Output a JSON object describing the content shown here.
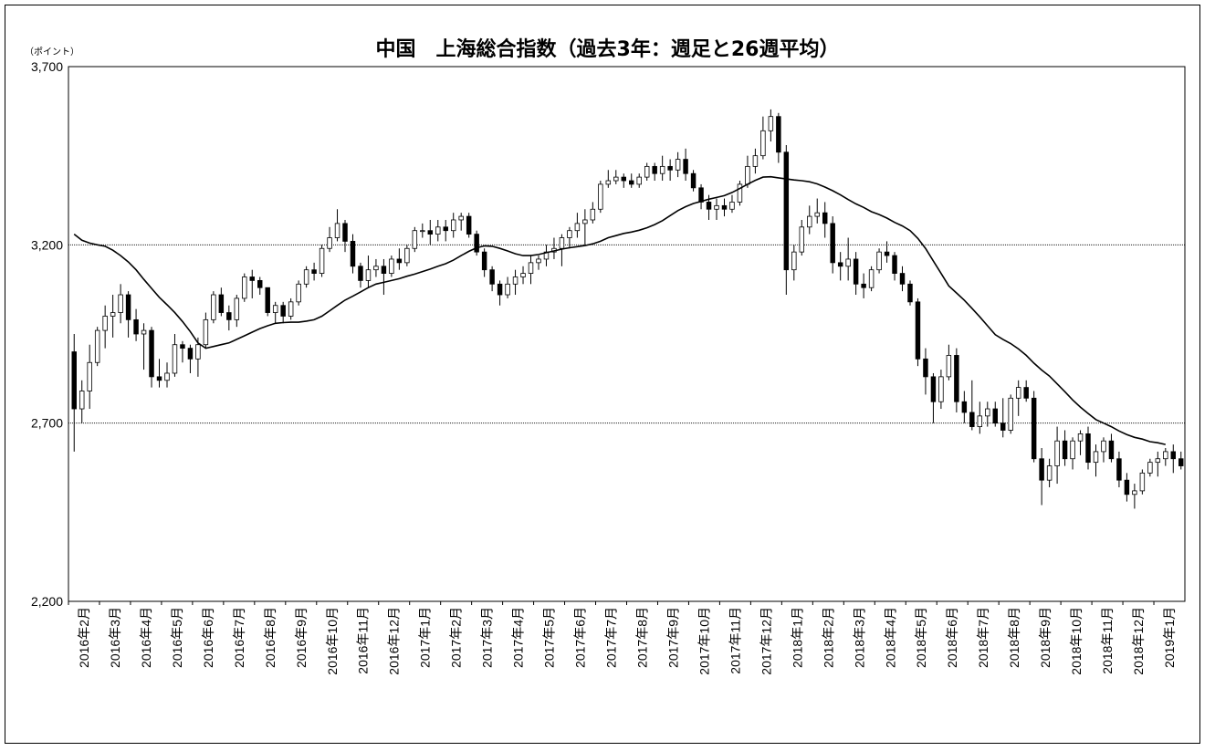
{
  "chart_data": {
    "type": "candlestick",
    "title": "中国　上海総合指数（過去3年：週足と26週平均）",
    "ylabel": "（ポイント）",
    "ylim": [
      2200,
      3700
    ],
    "yticks": [
      "3,700",
      "3,200",
      "2,700",
      "2,200"
    ],
    "ytick_values": [
      3700,
      3200,
      2700,
      2200
    ],
    "reference_lines": [
      3200,
      2700
    ],
    "x_month_labels": [
      "2016年2月",
      "2016年3月",
      "2016年4月",
      "2016年5月",
      "2016年6月",
      "2016年7月",
      "2016年8月",
      "2016年9月",
      "2016年10月",
      "2016年11月",
      "2016年12月",
      "2017年1月",
      "2017年2月",
      "2017年3月",
      "2017年4月",
      "2017年5月",
      "2017年6月",
      "2017年7月",
      "2017年8月",
      "2017年9月",
      "2017年10月",
      "2017年11月",
      "2017年12月",
      "2018年1月",
      "2018年2月",
      "2018年3月",
      "2018年4月",
      "2018年5月",
      "2018年6月",
      "2018年7月",
      "2018年8月",
      "2018年9月",
      "2018年10月",
      "2018年11月",
      "2018年12月",
      "2019年1月"
    ],
    "series": [
      {
        "type": "candlestick",
        "ohlc": [
          [
            2900,
            2950,
            2620,
            2740
          ],
          [
            2740,
            2820,
            2700,
            2790
          ],
          [
            2790,
            2920,
            2740,
            2870
          ],
          [
            2870,
            2970,
            2860,
            2960
          ],
          [
            2960,
            3030,
            2910,
            3000
          ],
          [
            3000,
            3060,
            2940,
            3010
          ],
          [
            3010,
            3090,
            2980,
            3060
          ],
          [
            3060,
            3070,
            2940,
            2990
          ],
          [
            2990,
            3020,
            2930,
            2950
          ],
          [
            2950,
            2980,
            2850,
            2960
          ],
          [
            2960,
            2970,
            2800,
            2830
          ],
          [
            2830,
            2880,
            2800,
            2820
          ],
          [
            2820,
            2870,
            2800,
            2840
          ],
          [
            2840,
            2950,
            2830,
            2920
          ],
          [
            2920,
            2930,
            2870,
            2910
          ],
          [
            2910,
            2920,
            2840,
            2880
          ],
          [
            2880,
            2940,
            2830,
            2920
          ],
          [
            2920,
            3010,
            2910,
            2990
          ],
          [
            2990,
            3070,
            2980,
            3060
          ],
          [
            3060,
            3080,
            3000,
            3010
          ],
          [
            3010,
            3030,
            2960,
            2990
          ],
          [
            2990,
            3060,
            2970,
            3050
          ],
          [
            3050,
            3120,
            3040,
            3110
          ],
          [
            3110,
            3130,
            3050,
            3100
          ],
          [
            3100,
            3110,
            3060,
            3080
          ],
          [
            3080,
            3080,
            3000,
            3010
          ],
          [
            3010,
            3040,
            2980,
            3030
          ],
          [
            3030,
            3040,
            2980,
            3000
          ],
          [
            3000,
            3050,
            2990,
            3040
          ],
          [
            3040,
            3100,
            3030,
            3090
          ],
          [
            3090,
            3140,
            3080,
            3130
          ],
          [
            3130,
            3150,
            3100,
            3120
          ],
          [
            3120,
            3200,
            3110,
            3190
          ],
          [
            3190,
            3250,
            3180,
            3220
          ],
          [
            3220,
            3300,
            3210,
            3260
          ],
          [
            3260,
            3270,
            3180,
            3210
          ],
          [
            3210,
            3230,
            3120,
            3140
          ],
          [
            3140,
            3150,
            3080,
            3100
          ],
          [
            3100,
            3170,
            3080,
            3130
          ],
          [
            3130,
            3160,
            3110,
            3140
          ],
          [
            3140,
            3160,
            3060,
            3120
          ],
          [
            3120,
            3170,
            3110,
            3160
          ],
          [
            3160,
            3190,
            3130,
            3150
          ],
          [
            3150,
            3200,
            3140,
            3190
          ],
          [
            3190,
            3250,
            3180,
            3240
          ],
          [
            3240,
            3260,
            3220,
            3240
          ],
          [
            3240,
            3270,
            3200,
            3230
          ],
          [
            3230,
            3270,
            3210,
            3250
          ],
          [
            3250,
            3270,
            3210,
            3240
          ],
          [
            3240,
            3290,
            3220,
            3270
          ],
          [
            3270,
            3290,
            3240,
            3280
          ],
          [
            3280,
            3290,
            3220,
            3230
          ],
          [
            3230,
            3240,
            3170,
            3180
          ],
          [
            3180,
            3190,
            3110,
            3130
          ],
          [
            3130,
            3140,
            3070,
            3090
          ],
          [
            3090,
            3100,
            3030,
            3060
          ],
          [
            3060,
            3110,
            3050,
            3090
          ],
          [
            3090,
            3130,
            3060,
            3110
          ],
          [
            3110,
            3140,
            3090,
            3120
          ],
          [
            3120,
            3170,
            3090,
            3150
          ],
          [
            3150,
            3170,
            3130,
            3160
          ],
          [
            3160,
            3200,
            3140,
            3180
          ],
          [
            3180,
            3220,
            3160,
            3190
          ],
          [
            3190,
            3230,
            3140,
            3220
          ],
          [
            3220,
            3250,
            3190,
            3240
          ],
          [
            3240,
            3290,
            3220,
            3260
          ],
          [
            3260,
            3300,
            3200,
            3270
          ],
          [
            3270,
            3320,
            3260,
            3300
          ],
          [
            3300,
            3380,
            3290,
            3370
          ],
          [
            3370,
            3410,
            3360,
            3380
          ],
          [
            3380,
            3410,
            3370,
            3390
          ],
          [
            3390,
            3400,
            3360,
            3380
          ],
          [
            3380,
            3400,
            3360,
            3370
          ],
          [
            3370,
            3400,
            3360,
            3390
          ],
          [
            3390,
            3430,
            3380,
            3420
          ],
          [
            3420,
            3430,
            3380,
            3400
          ],
          [
            3400,
            3450,
            3380,
            3420
          ],
          [
            3420,
            3440,
            3380,
            3410
          ],
          [
            3410,
            3460,
            3390,
            3440
          ],
          [
            3440,
            3470,
            3380,
            3400
          ],
          [
            3400,
            3410,
            3350,
            3360
          ],
          [
            3360,
            3370,
            3300,
            3320
          ],
          [
            3320,
            3340,
            3270,
            3300
          ],
          [
            3300,
            3330,
            3270,
            3310
          ],
          [
            3310,
            3330,
            3280,
            3300
          ],
          [
            3300,
            3340,
            3290,
            3320
          ],
          [
            3320,
            3380,
            3310,
            3370
          ],
          [
            3370,
            3450,
            3360,
            3420
          ],
          [
            3420,
            3470,
            3400,
            3450
          ],
          [
            3450,
            3560,
            3440,
            3520
          ],
          [
            3520,
            3580,
            3490,
            3560
          ],
          [
            3560,
            3570,
            3430,
            3460
          ],
          [
            3460,
            3480,
            3060,
            3130
          ],
          [
            3130,
            3200,
            3100,
            3180
          ],
          [
            3180,
            3270,
            3170,
            3250
          ],
          [
            3250,
            3310,
            3230,
            3280
          ],
          [
            3280,
            3330,
            3260,
            3290
          ],
          [
            3290,
            3320,
            3220,
            3260
          ],
          [
            3260,
            3280,
            3120,
            3150
          ],
          [
            3150,
            3180,
            3100,
            3140
          ],
          [
            3140,
            3220,
            3100,
            3160
          ],
          [
            3160,
            3180,
            3060,
            3090
          ],
          [
            3090,
            3120,
            3050,
            3080
          ],
          [
            3080,
            3140,
            3070,
            3130
          ],
          [
            3130,
            3190,
            3120,
            3180
          ],
          [
            3180,
            3210,
            3150,
            3170
          ],
          [
            3170,
            3180,
            3100,
            3120
          ],
          [
            3120,
            3140,
            3070,
            3090
          ],
          [
            3090,
            3100,
            3030,
            3040
          ],
          [
            3040,
            3050,
            2860,
            2880
          ],
          [
            2880,
            2910,
            2780,
            2830
          ],
          [
            2830,
            2840,
            2700,
            2760
          ],
          [
            2760,
            2850,
            2740,
            2830
          ],
          [
            2830,
            2920,
            2820,
            2890
          ],
          [
            2890,
            2910,
            2730,
            2760
          ],
          [
            2760,
            2790,
            2700,
            2730
          ],
          [
            2730,
            2820,
            2680,
            2690
          ],
          [
            2690,
            2760,
            2670,
            2720
          ],
          [
            2720,
            2760,
            2690,
            2740
          ],
          [
            2740,
            2760,
            2690,
            2700
          ],
          [
            2700,
            2770,
            2660,
            2680
          ],
          [
            2680,
            2780,
            2670,
            2770
          ],
          [
            2770,
            2820,
            2720,
            2800
          ],
          [
            2800,
            2820,
            2760,
            2770
          ],
          [
            2770,
            2790,
            2590,
            2600
          ],
          [
            2600,
            2630,
            2470,
            2540
          ],
          [
            2540,
            2600,
            2520,
            2580
          ],
          [
            2580,
            2690,
            2530,
            2650
          ],
          [
            2650,
            2680,
            2580,
            2600
          ],
          [
            2600,
            2660,
            2570,
            2650
          ],
          [
            2650,
            2680,
            2610,
            2670
          ],
          [
            2670,
            2690,
            2570,
            2590
          ],
          [
            2590,
            2640,
            2550,
            2620
          ],
          [
            2620,
            2660,
            2590,
            2650
          ],
          [
            2650,
            2670,
            2590,
            2600
          ],
          [
            2600,
            2620,
            2520,
            2540
          ],
          [
            2540,
            2560,
            2480,
            2500
          ],
          [
            2500,
            2530,
            2460,
            2510
          ],
          [
            2510,
            2570,
            2500,
            2560
          ],
          [
            2560,
            2600,
            2550,
            2590
          ],
          [
            2590,
            2620,
            2550,
            2600
          ],
          [
            2600,
            2630,
            2580,
            2620
          ],
          [
            2620,
            2640,
            2560,
            2600
          ],
          [
            2600,
            2620,
            2570,
            2580
          ]
        ]
      },
      {
        "type": "line",
        "values": [
          3230,
          3213,
          3205,
          3200,
          3196,
          3185,
          3170,
          3152,
          3130,
          3103,
          3078,
          3053,
          3032,
          3010,
          2985,
          2957,
          2925,
          2910,
          2915,
          2920,
          2925,
          2935,
          2945,
          2955,
          2965,
          2973,
          2980,
          2982,
          2983,
          2983,
          2986,
          2990,
          3000,
          3015,
          3030,
          3045,
          3056,
          3068,
          3080,
          3090,
          3095,
          3100,
          3105,
          3112,
          3118,
          3125,
          3132,
          3140,
          3147,
          3157,
          3170,
          3182,
          3192,
          3197,
          3196,
          3190,
          3183,
          3175,
          3170,
          3170,
          3173,
          3178,
          3183,
          3188,
          3192,
          3195,
          3198,
          3203,
          3210,
          3220,
          3226,
          3232,
          3236,
          3241,
          3248,
          3257,
          3268,
          3282,
          3296,
          3307,
          3316,
          3322,
          3328,
          3333,
          3338,
          3347,
          3358,
          3370,
          3381,
          3390,
          3391,
          3388,
          3385,
          3382,
          3380,
          3377,
          3371,
          3362,
          3352,
          3340,
          3327,
          3315,
          3305,
          3293,
          3285,
          3275,
          3263,
          3253,
          3240,
          3218,
          3190,
          3155,
          3120,
          3085,
          3065,
          3045,
          3022,
          2998,
          2973,
          2948,
          2935,
          2923,
          2908,
          2890,
          2868,
          2849,
          2832,
          2810,
          2788,
          2765,
          2745,
          2727,
          2710,
          2700,
          2690,
          2678,
          2668,
          2660,
          2655,
          2648,
          2645,
          2640
        ]
      }
    ],
    "grid": false,
    "legend": "none"
  }
}
